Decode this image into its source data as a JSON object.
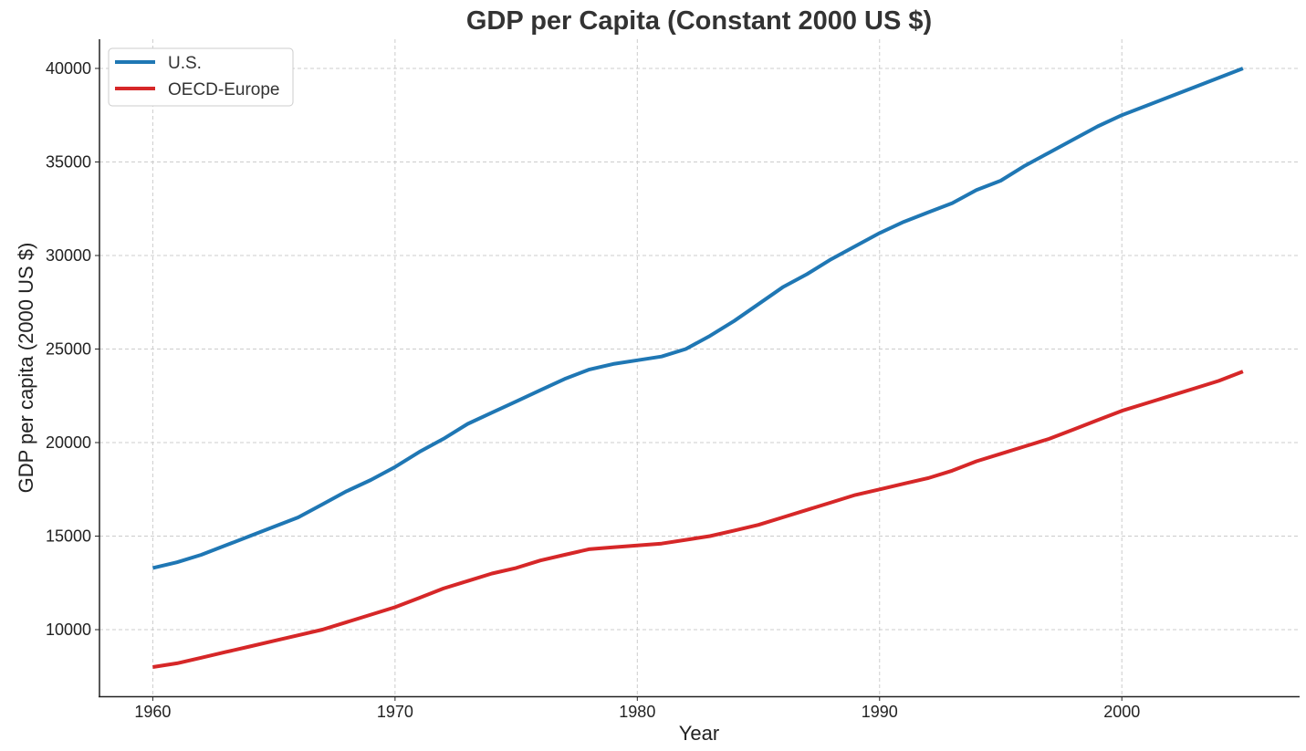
{
  "chart_data": {
    "type": "line",
    "title": "GDP per Capita (Constant 2000 US $)",
    "xlabel": "Year",
    "ylabel": "GDP per capita (2000 US $)",
    "xlim": [
      1957.8,
      2007.3
    ],
    "ylim": [
      6440,
      41560
    ],
    "xticks": [
      1960,
      1970,
      1980,
      1990,
      2000
    ],
    "yticks": [
      10000,
      15000,
      20000,
      25000,
      30000,
      35000,
      40000
    ],
    "grid": true,
    "legend_position": "top-left",
    "x": [
      1960,
      1961,
      1962,
      1963,
      1964,
      1965,
      1966,
      1967,
      1968,
      1969,
      1970,
      1971,
      1972,
      1973,
      1974,
      1975,
      1976,
      1977,
      1978,
      1979,
      1980,
      1981,
      1982,
      1983,
      1984,
      1985,
      1986,
      1987,
      1988,
      1989,
      1990,
      1991,
      1992,
      1993,
      1994,
      1995,
      1996,
      1997,
      1998,
      1999,
      2000,
      2001,
      2002,
      2003,
      2004,
      2005
    ],
    "series": [
      {
        "name": "U.S.",
        "color": "#1f77b4",
        "values": [
          13300,
          13600,
          14000,
          14500,
          15000,
          15500,
          16000,
          16700,
          17400,
          18000,
          18700,
          19500,
          20200,
          21000,
          21600,
          22200,
          22800,
          23400,
          23900,
          24200,
          24400,
          24600,
          25000,
          25700,
          26500,
          27400,
          28300,
          29000,
          29800,
          30500,
          31200,
          31800,
          32300,
          32800,
          33500,
          34000,
          34800,
          35500,
          36200,
          36900,
          37500,
          38000,
          38500,
          39000,
          39500,
          40000
        ]
      },
      {
        "name": "OECD-Europe",
        "color": "#d62728",
        "values": [
          8000,
          8200,
          8500,
          8800,
          9100,
          9400,
          9700,
          10000,
          10400,
          10800,
          11200,
          11700,
          12200,
          12600,
          13000,
          13300,
          13700,
          14000,
          14300,
          14400,
          14500,
          14600,
          14800,
          15000,
          15300,
          15600,
          16000,
          16400,
          16800,
          17200,
          17500,
          17800,
          18100,
          18500,
          19000,
          19400,
          19800,
          20200,
          20700,
          21200,
          21700,
          22100,
          22500,
          22900,
          23300,
          23800
        ]
      }
    ]
  }
}
